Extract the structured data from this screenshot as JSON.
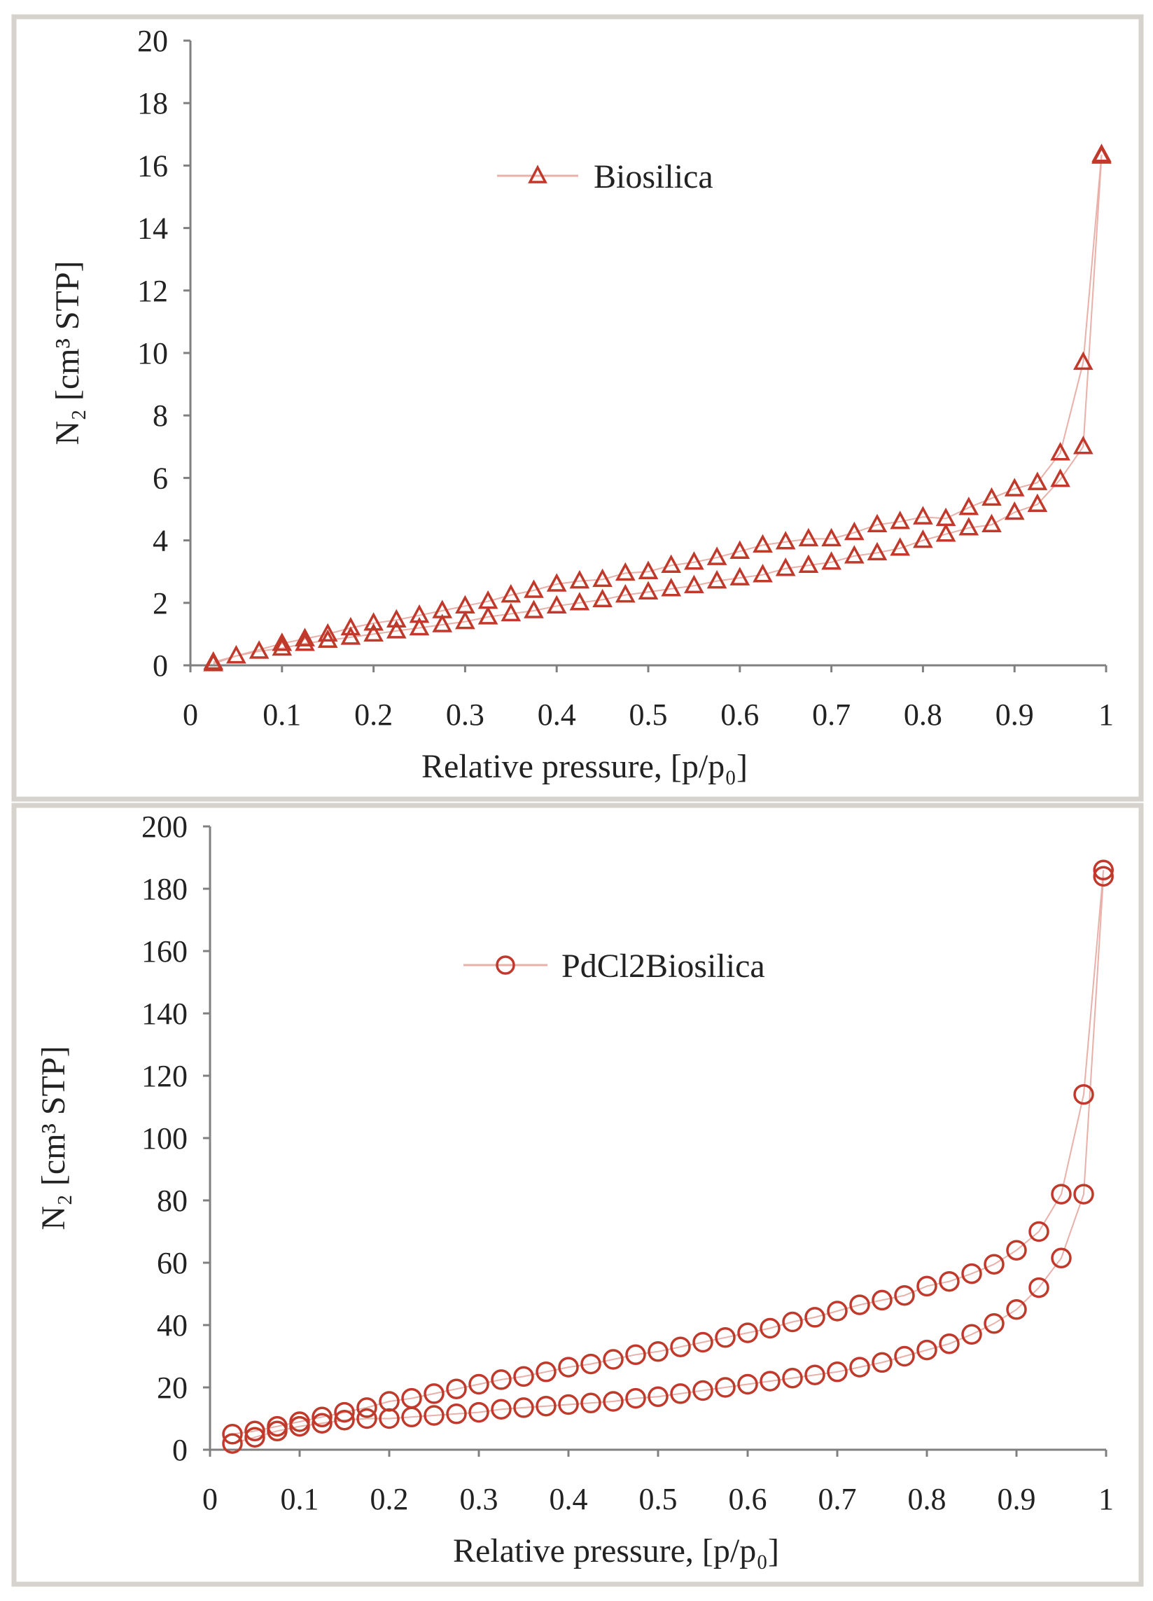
{
  "chart_data": [
    {
      "type": "scatter",
      "title": "",
      "xlabel": "Relative pressure, [p/p₀]",
      "ylabel": "N₂ [cm³ STP]",
      "xlim": [
        0,
        1
      ],
      "ylim": [
        0,
        20
      ],
      "x_ticks": [
        "0",
        "0.1",
        "0.2",
        "0.3",
        "0.4",
        "0.5",
        "0.6",
        "0.7",
        "0.8",
        "0.9",
        "1"
      ],
      "y_ticks": [
        "0",
        "2",
        "4",
        "6",
        "8",
        "10",
        "12",
        "14",
        "16",
        "18",
        "20"
      ],
      "legend_position": "top-center",
      "marker": "triangle",
      "series": [
        {
          "name": "Biosilica",
          "color": "#c0392b",
          "line_color": "#e8b0a8",
          "adsorption": {
            "x": [
              0.025,
              0.05,
              0.075,
              0.1,
              0.125,
              0.15,
              0.175,
              0.2,
              0.225,
              0.25,
              0.275,
              0.3,
              0.325,
              0.35,
              0.375,
              0.4,
              0.425,
              0.45,
              0.475,
              0.5,
              0.525,
              0.55,
              0.575,
              0.6,
              0.625,
              0.65,
              0.675,
              0.7,
              0.725,
              0.75,
              0.775,
              0.8,
              0.825,
              0.85,
              0.875,
              0.9,
              0.925,
              0.95,
              0.975,
              0.995
            ],
            "y": [
              0.05,
              0.3,
              0.45,
              0.55,
              0.7,
              0.8,
              0.9,
              1.0,
              1.1,
              1.2,
              1.3,
              1.4,
              1.55,
              1.65,
              1.75,
              1.9,
              2.0,
              2.1,
              2.25,
              2.35,
              2.45,
              2.55,
              2.7,
              2.8,
              2.9,
              3.1,
              3.2,
              3.3,
              3.5,
              3.6,
              3.75,
              4.0,
              4.2,
              4.4,
              4.5,
              4.9,
              5.15,
              5.95,
              7.0,
              16.3
            ]
          },
          "desorption": {
            "x": [
              0.995,
              0.975,
              0.95,
              0.925,
              0.9,
              0.875,
              0.85,
              0.825,
              0.8,
              0.775,
              0.75,
              0.725,
              0.7,
              0.675,
              0.65,
              0.625,
              0.6,
              0.575,
              0.55,
              0.525,
              0.5,
              0.475,
              0.45,
              0.425,
              0.4,
              0.375,
              0.35,
              0.325,
              0.3,
              0.275,
              0.25,
              0.225,
              0.2,
              0.175,
              0.15,
              0.125,
              0.1,
              0.025
            ],
            "y": [
              16.35,
              9.7,
              6.8,
              5.85,
              5.65,
              5.35,
              5.05,
              4.7,
              4.75,
              4.6,
              4.5,
              4.25,
              4.05,
              4.05,
              3.95,
              3.85,
              3.65,
              3.45,
              3.3,
              3.2,
              3.0,
              2.95,
              2.75,
              2.7,
              2.6,
              2.4,
              2.25,
              2.05,
              1.9,
              1.75,
              1.6,
              1.45,
              1.35,
              1.2,
              1.0,
              0.85,
              0.7,
              0.1
            ]
          }
        }
      ]
    },
    {
      "type": "scatter",
      "title": "",
      "xlabel": "Relative pressure, [p/p₀]",
      "ylabel": "N₂ [cm³ STP]",
      "xlim": [
        0,
        1
      ],
      "ylim": [
        0,
        200
      ],
      "x_ticks": [
        "0",
        "0.1",
        "0.2",
        "0.3",
        "0.4",
        "0.5",
        "0.6",
        "0.7",
        "0.8",
        "0.9",
        "1"
      ],
      "y_ticks": [
        "0",
        "20",
        "40",
        "60",
        "80",
        "100",
        "120",
        "140",
        "160",
        "180",
        "200"
      ],
      "legend_position": "top-center",
      "marker": "circle",
      "series": [
        {
          "name": "PdCl2Biosilica",
          "color": "#c0392b",
          "line_color": "#e8b0a8",
          "adsorption": {
            "x": [
              0.025,
              0.05,
              0.075,
              0.1,
              0.125,
              0.15,
              0.175,
              0.2,
              0.225,
              0.25,
              0.275,
              0.3,
              0.325,
              0.35,
              0.375,
              0.4,
              0.425,
              0.45,
              0.475,
              0.5,
              0.525,
              0.55,
              0.575,
              0.6,
              0.625,
              0.65,
              0.675,
              0.7,
              0.725,
              0.75,
              0.775,
              0.8,
              0.825,
              0.85,
              0.875,
              0.9,
              0.925,
              0.95,
              0.975,
              0.997
            ],
            "y": [
              2,
              4,
              6,
              7.5,
              8.5,
              9.5,
              10,
              10,
              10.5,
              11,
              11.5,
              12,
              13,
              13.5,
              14,
              14.5,
              15,
              15.5,
              16.5,
              17,
              18,
              19,
              20,
              21,
              22,
              23,
              24,
              25,
              26.5,
              28,
              30,
              32,
              34,
              37,
              40.5,
              45,
              52,
              61.5,
              82,
              184
            ]
          },
          "desorption": {
            "x": [
              0.997,
              0.975,
              0.95,
              0.925,
              0.9,
              0.875,
              0.85,
              0.825,
              0.8,
              0.775,
              0.75,
              0.725,
              0.7,
              0.675,
              0.65,
              0.625,
              0.6,
              0.575,
              0.55,
              0.525,
              0.5,
              0.475,
              0.45,
              0.425,
              0.4,
              0.375,
              0.35,
              0.325,
              0.3,
              0.275,
              0.25,
              0.225,
              0.2,
              0.175,
              0.15,
              0.125,
              0.1,
              0.075,
              0.05,
              0.025
            ],
            "y": [
              186,
              114,
              82,
              70,
              64,
              59.5,
              56.5,
              54,
              52.5,
              49.5,
              48,
              46.5,
              44.5,
              42.5,
              41,
              39,
              37.5,
              36,
              34.5,
              33,
              31.5,
              30.5,
              29,
              27.5,
              26.5,
              25,
              23.5,
              22.5,
              21,
              19.5,
              18,
              16.5,
              15.5,
              13.5,
              12,
              10.5,
              9,
              7.5,
              6,
              5
            ]
          }
        }
      ]
    }
  ]
}
